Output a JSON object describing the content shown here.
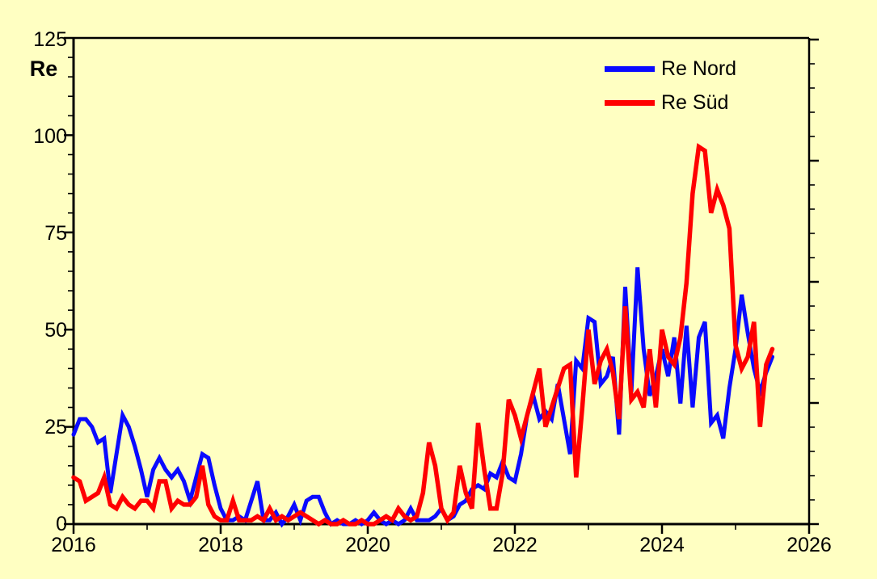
{
  "window": {
    "background_color": "#ffffc2"
  },
  "axis": {
    "y_label": "Re",
    "y_tick_labels": [
      "125",
      "100",
      "75",
      "50",
      "25",
      "0"
    ],
    "x_tick_labels": [
      "2016",
      "2018",
      "2020",
      "2022",
      "2024",
      "2026"
    ]
  },
  "legend": {
    "items": [
      {
        "label": "Re Nord",
        "color": "#0a0aff"
      },
      {
        "label": "Re Süd",
        "color": "#ff0000"
      }
    ]
  },
  "chart_data": {
    "type": "line",
    "title": "",
    "xlabel": "",
    "ylabel": "Re",
    "xlim": [
      2016,
      2026
    ],
    "ylim": [
      0,
      125
    ],
    "x_major_ticks": [
      2016,
      2018,
      2020,
      2022,
      2024,
      2026
    ],
    "x_minor_step_years": 1,
    "y_major_ticks": [
      0,
      25,
      50,
      75,
      100,
      125
    ],
    "y_minor_step": 5,
    "grid": false,
    "frame": "boxed-with-outward-ticks",
    "legend_position": "top-right-inside",
    "x_monthly_start": "2016-01",
    "x_monthly_end": "2025-07",
    "series": [
      {
        "name": "Re Nord",
        "color": "#0a0aff",
        "values": [
          23,
          27,
          27,
          25,
          21,
          22,
          8,
          18,
          28,
          25,
          20,
          14,
          7,
          14,
          17,
          14,
          12,
          14,
          11,
          6,
          12,
          18,
          17,
          10,
          4,
          1,
          1,
          2,
          1,
          6,
          11,
          1,
          1,
          3,
          0,
          2,
          5,
          1,
          6,
          7,
          7,
          3,
          0,
          1,
          0,
          0,
          1,
          0,
          1,
          3,
          1,
          0,
          1,
          0,
          1,
          4,
          1,
          1,
          1,
          2,
          4,
          1,
          2,
          5,
          6,
          9,
          10,
          9,
          13,
          12,
          16,
          12,
          11,
          18,
          28,
          33,
          27,
          29,
          27,
          36,
          27,
          18,
          42,
          40,
          53,
          52,
          36,
          38,
          43,
          23,
          61,
          34,
          66,
          45,
          33,
          38,
          45,
          38,
          48,
          31,
          51,
          30,
          48,
          52,
          26,
          28,
          22,
          35,
          45,
          59,
          49,
          40,
          34,
          39,
          43
        ]
      },
      {
        "name": "Re Süd",
        "color": "#ff0000",
        "values": [
          12,
          11,
          6,
          7,
          8,
          12,
          5,
          4,
          7,
          5,
          4,
          6,
          6,
          4,
          11,
          11,
          4,
          6,
          5,
          5,
          7,
          15,
          5,
          2,
          1,
          1,
          6,
          1,
          1,
          1,
          2,
          1,
          4,
          1,
          2,
          1,
          2,
          3,
          2,
          1,
          0,
          1,
          0,
          0,
          1,
          0,
          0,
          1,
          0,
          0,
          1,
          2,
          1,
          4,
          2,
          1,
          2,
          8,
          21,
          15,
          4,
          1,
          3,
          15,
          8,
          4,
          26,
          14,
          4,
          4,
          13,
          32,
          28,
          22,
          28,
          34,
          40,
          25,
          30,
          35,
          40,
          41,
          12,
          30,
          50,
          36,
          42,
          45,
          39,
          27,
          56,
          32,
          34,
          30,
          45,
          30,
          50,
          43,
          41,
          48,
          62,
          85,
          97,
          96,
          80,
          86,
          82,
          76,
          46,
          40,
          43,
          52,
          25,
          41,
          45
        ]
      }
    ]
  }
}
